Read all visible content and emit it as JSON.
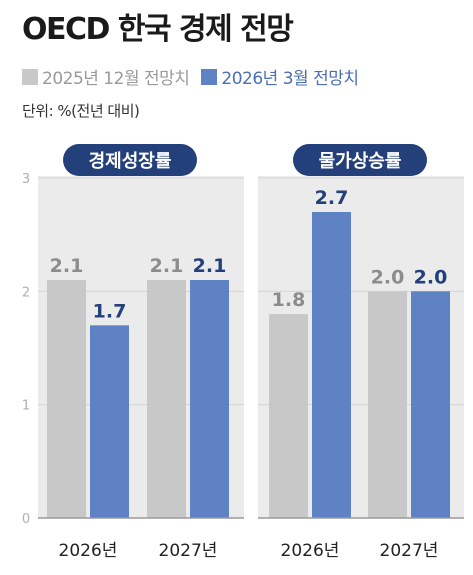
{
  "title": "OECD 한국 경제 전망",
  "unit_label": "단위: %(전년 대비)",
  "legend": [
    {
      "label": "2025년 12월 전망치",
      "color": "#c8c8c8"
    },
    {
      "label": "2026년 3월 전망치",
      "color": "#5e82c4"
    }
  ],
  "colors": {
    "prev": "#c8c8c8",
    "new": "#5e82c4",
    "panel_bg": "#ebebeb",
    "pill_bg": "#23407a",
    "prev_label": "#8c8c8c",
    "new_label": "#23407a"
  },
  "chart_data": [
    {
      "type": "bar",
      "title": "경제성장률",
      "categories": [
        "2026년",
        "2027년"
      ],
      "series": [
        {
          "name": "2025년 12월 전망치",
          "values": [
            2.1,
            2.1
          ]
        },
        {
          "name": "2026년 3월 전망치",
          "values": [
            1.7,
            2.1
          ]
        }
      ],
      "data_labels": [
        [
          "2.1",
          "1.7"
        ],
        [
          "2.1",
          "2.1"
        ]
      ],
      "ylim": [
        0,
        3
      ],
      "yticks": [
        0,
        1,
        2,
        3
      ]
    },
    {
      "type": "bar",
      "title": "물가상승률",
      "categories": [
        "2026년",
        "2027년"
      ],
      "series": [
        {
          "name": "2025년 12월 전망치",
          "values": [
            1.8,
            2.0
          ]
        },
        {
          "name": "2026년 3월 전망치",
          "values": [
            2.7,
            2.0
          ]
        }
      ],
      "data_labels": [
        [
          "1.8",
          "2.7"
        ],
        [
          "2.0",
          "2.0"
        ]
      ],
      "ylim": [
        0,
        3
      ],
      "yticks": [
        0,
        1,
        2,
        3
      ]
    }
  ]
}
